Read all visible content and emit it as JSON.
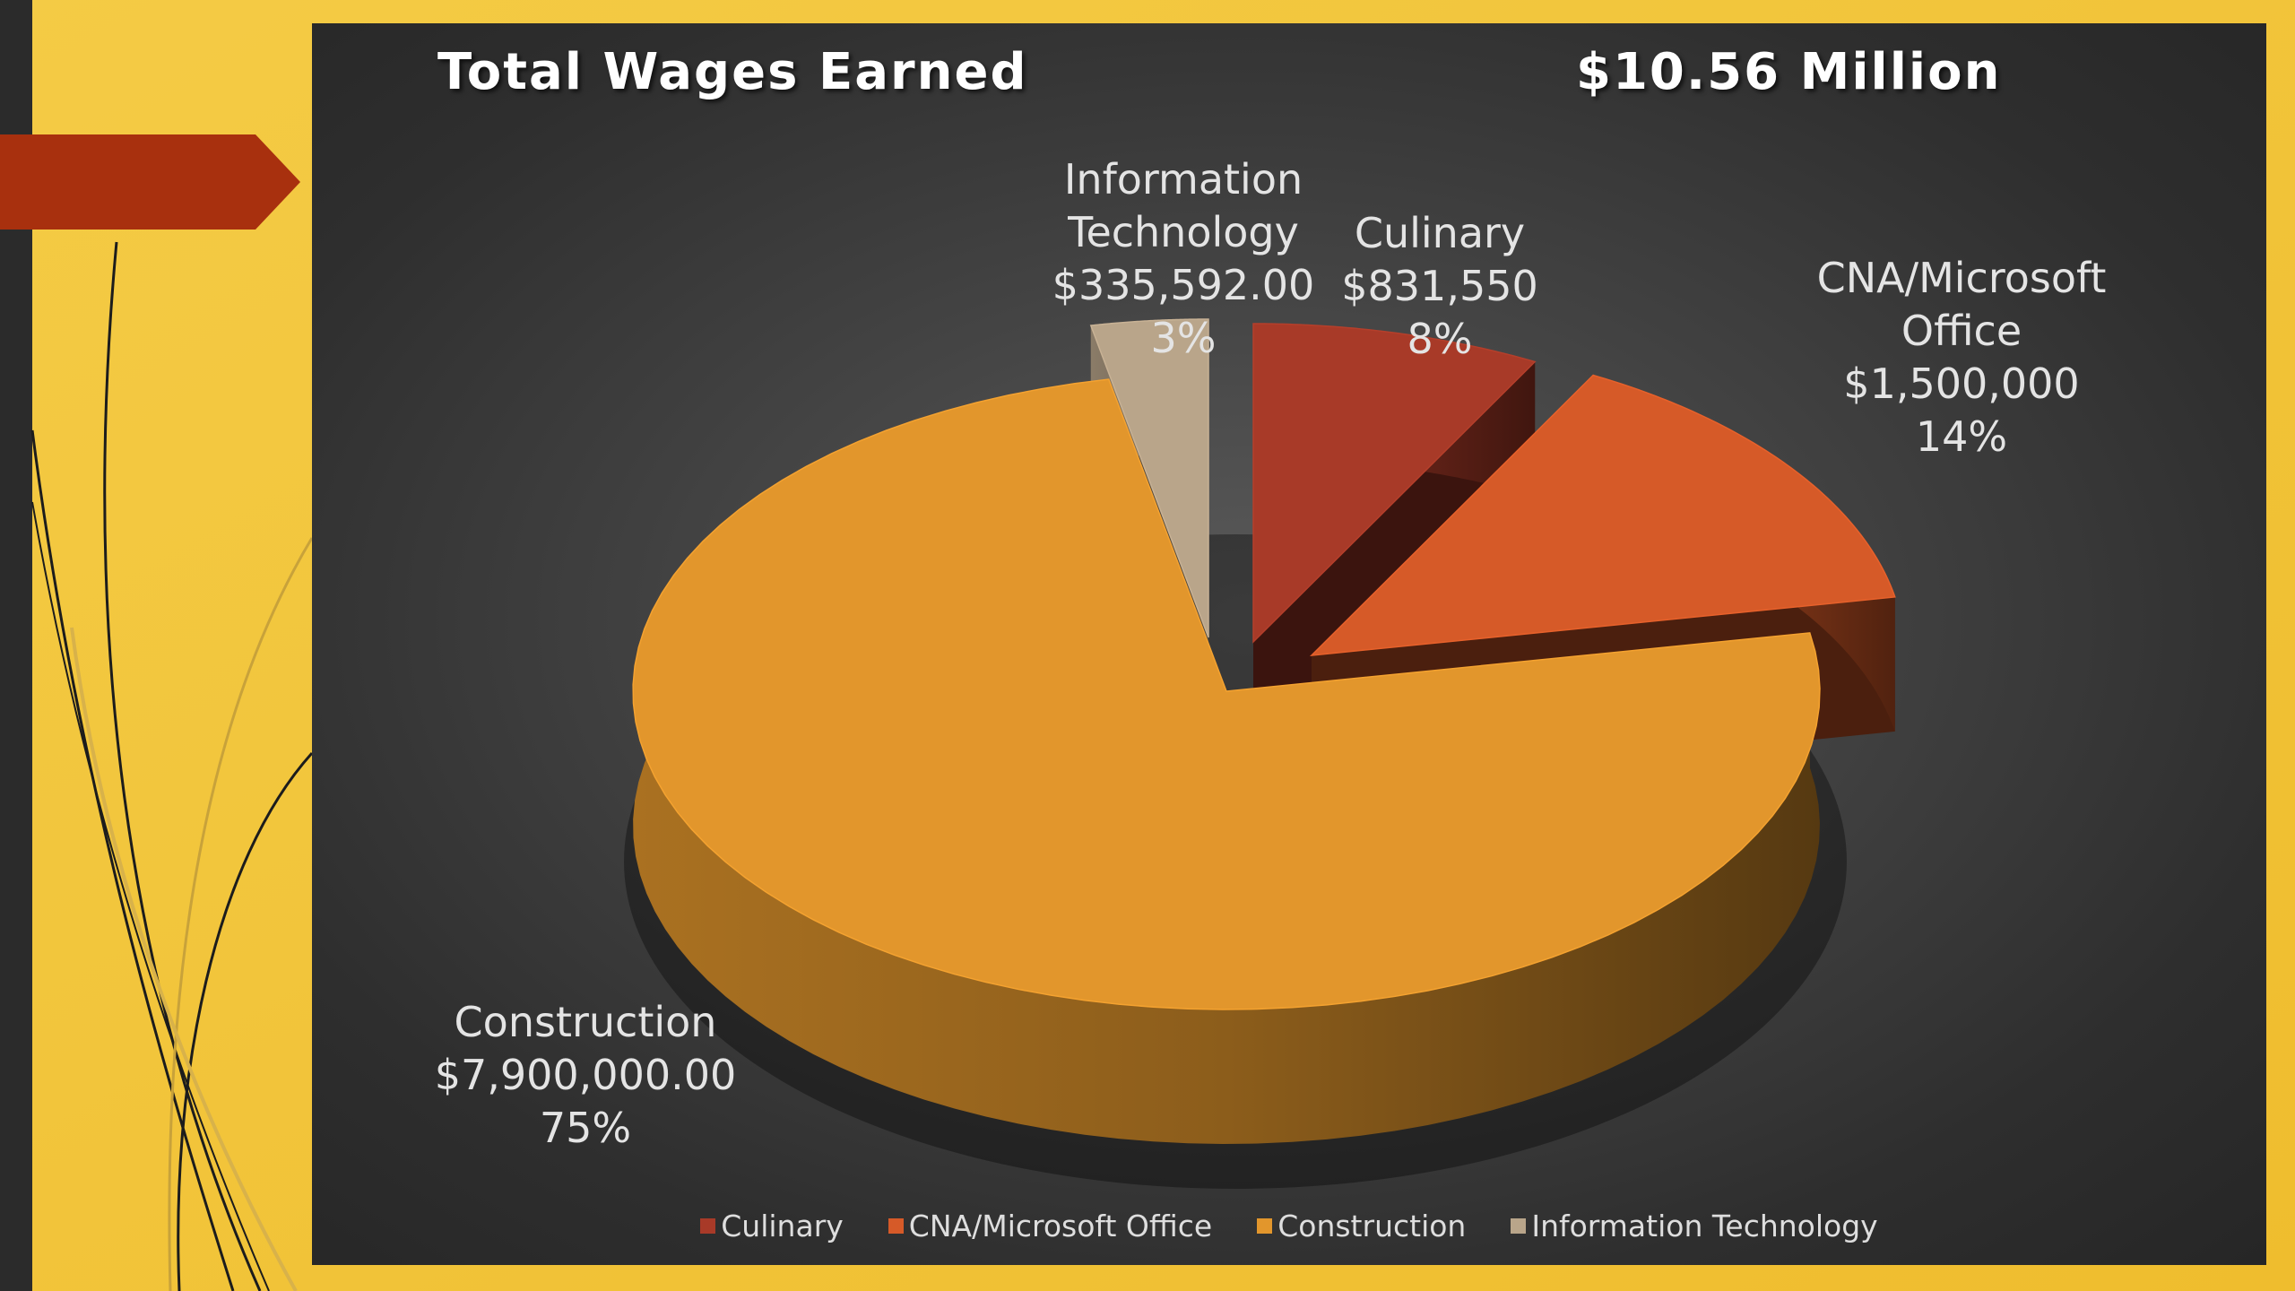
{
  "header": {
    "title": "Total Wages Earned",
    "total": "$10.56 Million"
  },
  "chart_data": {
    "type": "pie",
    "title": "Total Wages Earned",
    "total_label": "$10.56 Million",
    "categories": [
      "Culinary",
      "CNA/Microsoft Office",
      "Construction",
      "Information Technology"
    ],
    "values": [
      831550,
      1500000,
      7900000,
      335592
    ],
    "slices": [
      {
        "name": "Culinary",
        "label_lines": [
          "Culinary"
        ],
        "value": 831550,
        "value_label": "$831,550",
        "percent_label": "8%",
        "color": "#a83a28"
      },
      {
        "name": "CNA/Microsoft Office",
        "label_lines": [
          "CNA/Microsoft",
          "Office"
        ],
        "value": 1500000,
        "value_label": "$1,500,000",
        "percent_label": "14%",
        "color": "#d65a28"
      },
      {
        "name": "Construction",
        "label_lines": [
          "Construction"
        ],
        "value": 7900000,
        "value_label": "$7,900,000.00",
        "percent_label": "75%",
        "color": "#e2962c"
      },
      {
        "name": "Information Technology",
        "label_lines": [
          "Information",
          "Technology"
        ],
        "value": 335592,
        "value_label": "$335,592.00",
        "percent_label": "3%",
        "color": "#b9a58a"
      }
    ],
    "legend": {
      "position": "bottom",
      "entries": [
        "Culinary",
        "CNA/Microsoft Office",
        "Construction",
        "Information Technology"
      ]
    },
    "exploded": true,
    "style": "3d"
  },
  "colors": {
    "slide_background": "#f2c53c",
    "panel_background": "#3a3a3a",
    "accent_arrow": "#a8300e"
  }
}
